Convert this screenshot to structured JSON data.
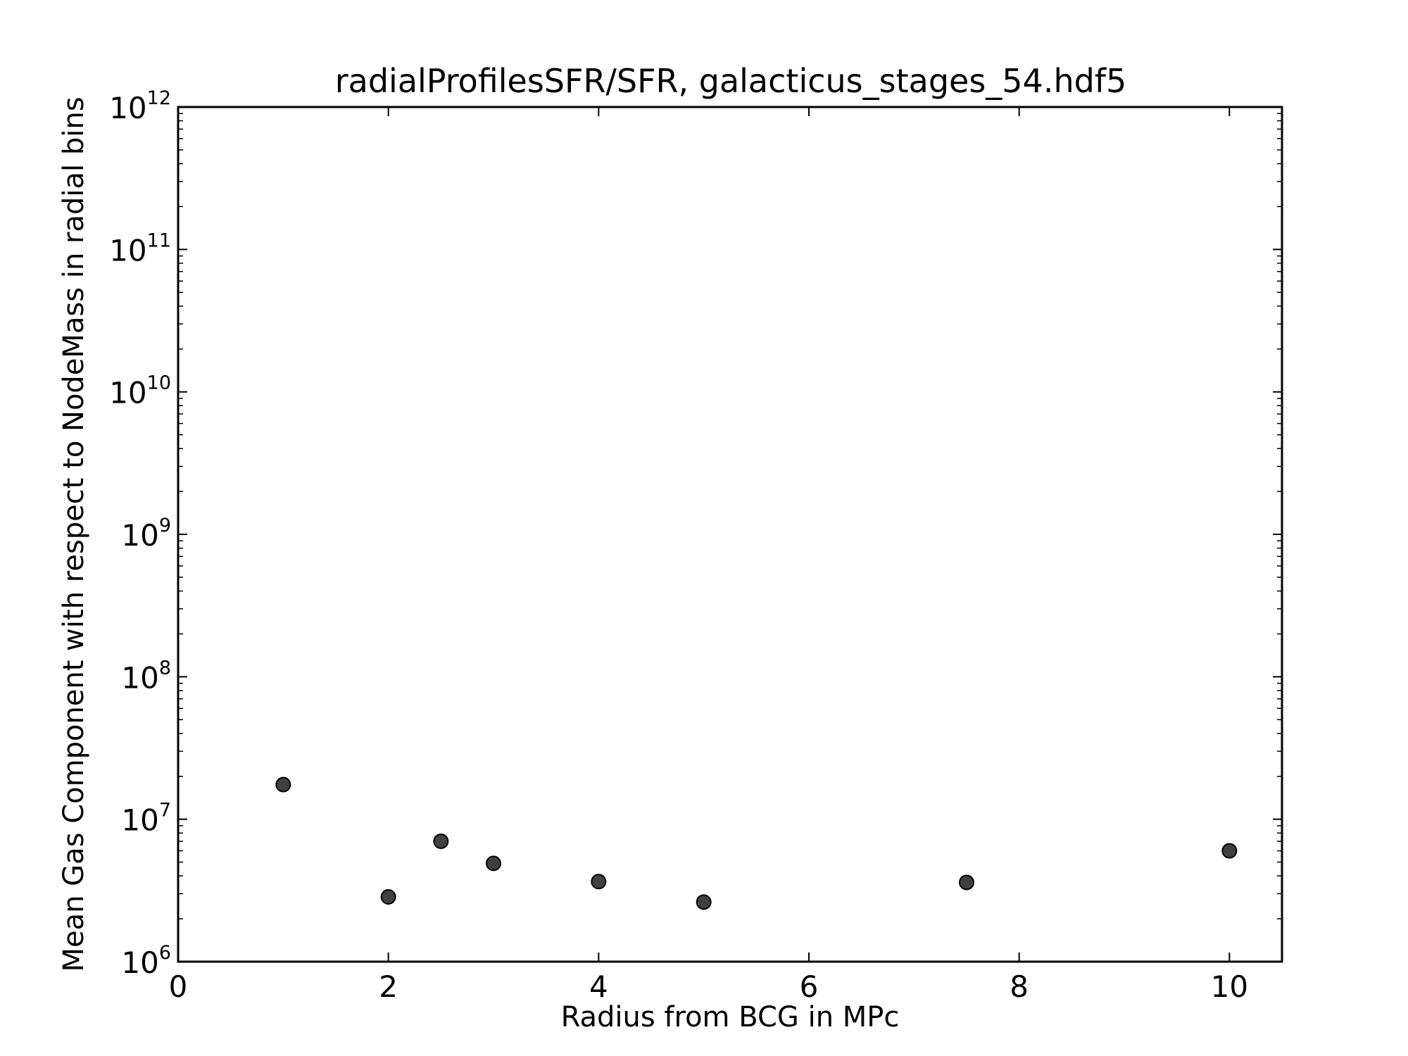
{
  "chart_data": {
    "type": "scatter",
    "title": "radialProfilesSFR/SFR, galacticus_stages_54.hdf5",
    "xlabel": "Radius from BCG in MPc",
    "ylabel": "Mean Gas Component with respect to NodeMass in radial bins",
    "xlim": [
      0,
      10.5
    ],
    "ylim": [
      1000000,
      1000000000000
    ],
    "yscale": "log",
    "grid": false,
    "x_ticks": [
      {
        "value": 0,
        "label": "0"
      },
      {
        "value": 2,
        "label": "2"
      },
      {
        "value": 4,
        "label": "4"
      },
      {
        "value": 6,
        "label": "6"
      },
      {
        "value": 8,
        "label": "8"
      },
      {
        "value": 10,
        "label": "10"
      }
    ],
    "y_ticks": [
      {
        "value": 1000000,
        "base": "10",
        "exp": "6"
      },
      {
        "value": 10000000,
        "base": "10",
        "exp": "7"
      },
      {
        "value": 100000000,
        "base": "10",
        "exp": "8"
      },
      {
        "value": 1000000000,
        "base": "10",
        "exp": "9"
      },
      {
        "value": 10000000000,
        "base": "10",
        "exp": "10"
      },
      {
        "value": 100000000000,
        "base": "10",
        "exp": "11"
      },
      {
        "value": 1000000000000,
        "base": "10",
        "exp": "12"
      }
    ],
    "marker_color": "#404040",
    "series": [
      {
        "points": [
          {
            "x": 1.0,
            "y": 17500000
          },
          {
            "x": 2.0,
            "y": 2850000
          },
          {
            "x": 2.5,
            "y": 7000000
          },
          {
            "x": 3.0,
            "y": 4900000
          },
          {
            "x": 4.0,
            "y": 3650000
          },
          {
            "x": 5.0,
            "y": 2620000
          },
          {
            "x": 7.5,
            "y": 3600000
          },
          {
            "x": 10.0,
            "y": 6000000
          }
        ]
      }
    ]
  }
}
